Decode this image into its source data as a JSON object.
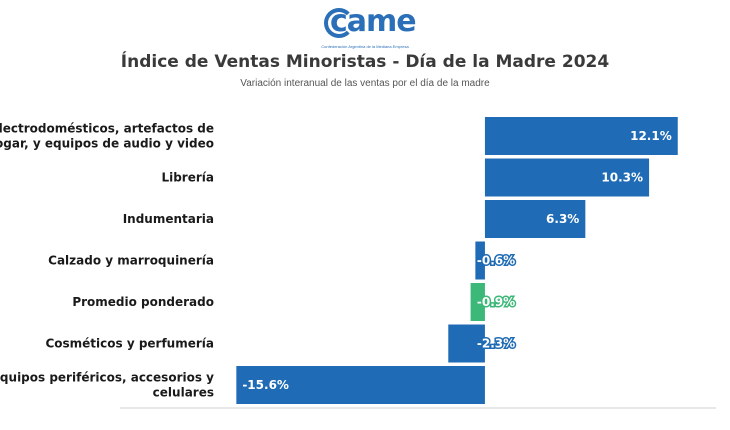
{
  "logo": {
    "text": "came",
    "subtitle": "Confederación Argentina de la Mediana Empresa"
  },
  "colors": {
    "bar": "#1f6bb5",
    "highlight": "#3cb878",
    "axis": "#d0d0d0",
    "label": "#1a1a1a"
  },
  "chart_data": {
    "type": "bar",
    "orientation": "horizontal",
    "title": "Índice de Ventas Minoristas - Día de la Madre 2024",
    "subtitle": "Variación interanual de las ventas por el día de la madre",
    "categories": [
      [
        "Electrodomésticos, artefactos de",
        "hogar, y equipos de audio y video"
      ],
      [
        "Librería"
      ],
      [
        "Indumentaria"
      ],
      [
        "Calzado y marroquinería"
      ],
      [
        "Promedio ponderado"
      ],
      [
        "Cosméticos y perfumería"
      ],
      [
        "Equipos periféricos, accesorios y",
        "celulares"
      ]
    ],
    "values": [
      12.1,
      10.3,
      6.3,
      -0.6,
      -0.9,
      -2.3,
      -15.6
    ],
    "value_labels": [
      "12.1%",
      "10.3%",
      "6.3%",
      "-0.6%",
      "-0.9%",
      "-2.3%",
      "-15.6%"
    ],
    "highlight_index": 4,
    "xlim": [
      -16.5,
      14.5
    ],
    "grid": false,
    "legend": "none"
  }
}
